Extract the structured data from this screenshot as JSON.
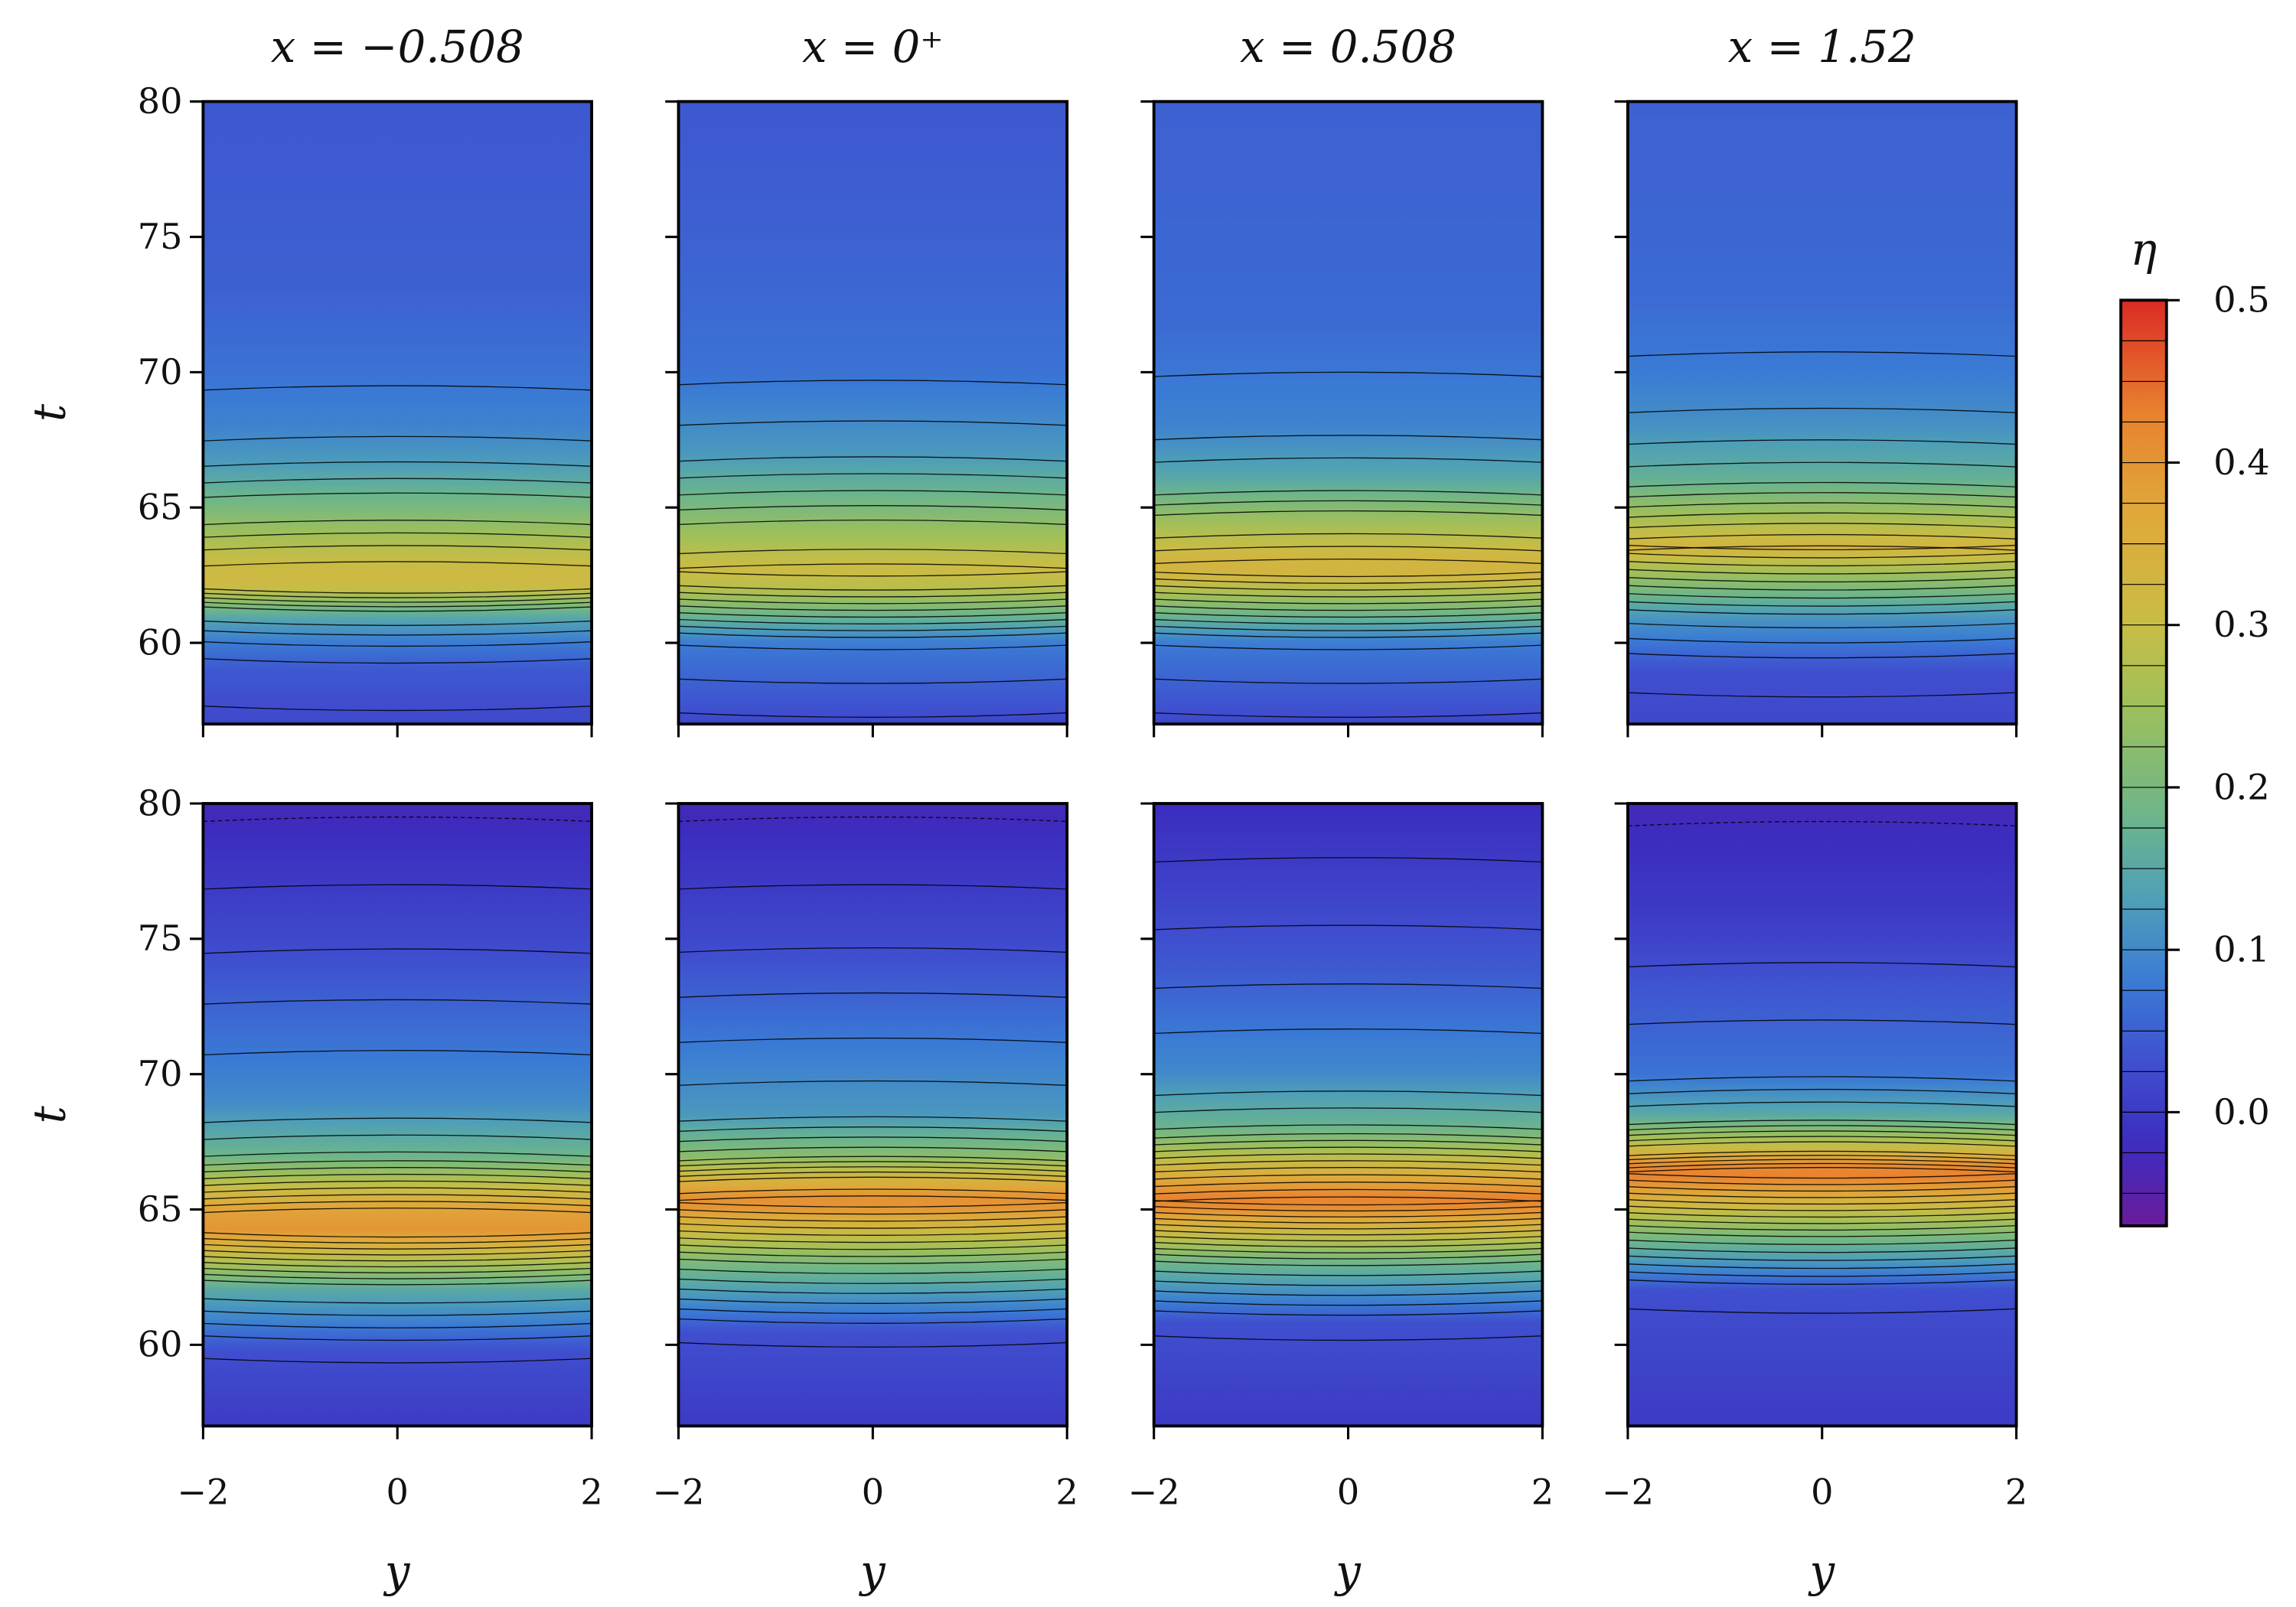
{
  "chart_data": {
    "type": "heatmap",
    "description_rows": 2,
    "columns": 4,
    "xlabel": "y",
    "ylabel": "t",
    "xlim": [
      -2,
      2
    ],
    "ylim": [
      57,
      80
    ],
    "xticks": [
      "−2",
      "0",
      "2"
    ],
    "xtick_values": [
      -2,
      0,
      2
    ],
    "yticks": [
      "60",
      "65",
      "70",
      "75",
      "80"
    ],
    "ytick_values": [
      60,
      65,
      70,
      75,
      80
    ],
    "titles": [
      "x = −0.508",
      "x = 0⁺",
      "x = 0.508",
      "x = 1.52"
    ],
    "colorbar": {
      "label": "η",
      "range": [
        -0.07,
        0.5
      ],
      "ticks": [
        "0.0",
        "0.1",
        "0.2",
        "0.3",
        "0.4",
        "0.5"
      ],
      "tick_values": [
        0,
        0.1,
        0.2,
        0.3,
        0.4,
        0.5
      ],
      "level_step": 0.025
    },
    "colormap": [
      [
        -0.07,
        "#6a1b9a"
      ],
      [
        -0.02,
        "#3c2cbf"
      ],
      [
        0.03,
        "#3f4fcf"
      ],
      [
        0.08,
        "#3a7bd5"
      ],
      [
        0.13,
        "#4e9fb8"
      ],
      [
        0.18,
        "#6bb58c"
      ],
      [
        0.25,
        "#9ec05a"
      ],
      [
        0.3,
        "#c8bd45"
      ],
      [
        0.37,
        "#e0a83a"
      ],
      [
        0.43,
        "#e8822f"
      ],
      [
        0.5,
        "#dc2a25"
      ]
    ],
    "panels": [
      {
        "row": 0,
        "col": 0,
        "profile": [
          [
            57,
            0.02
          ],
          [
            59,
            0.04
          ],
          [
            60,
            0.08
          ],
          [
            61,
            0.15
          ],
          [
            62,
            0.3
          ],
          [
            62.5,
            0.32
          ],
          [
            63.5,
            0.28
          ],
          [
            65,
            0.2
          ],
          [
            66.5,
            0.13
          ],
          [
            68,
            0.09
          ],
          [
            70,
            0.07
          ],
          [
            73,
            0.05
          ],
          [
            80,
            0.04
          ]
        ]
      },
      {
        "row": 0,
        "col": 1,
        "profile": [
          [
            57,
            0.02
          ],
          [
            60,
            0.08
          ],
          [
            62,
            0.28
          ],
          [
            62.7,
            0.31
          ],
          [
            64,
            0.25
          ],
          [
            65.5,
            0.18
          ],
          [
            67,
            0.12
          ],
          [
            70,
            0.07
          ],
          [
            75,
            0.05
          ],
          [
            80,
            0.04
          ]
        ]
      },
      {
        "row": 0,
        "col": 2,
        "profile": [
          [
            57,
            0.02
          ],
          [
            60,
            0.08
          ],
          [
            62.5,
            0.33
          ],
          [
            63,
            0.33
          ],
          [
            64.5,
            0.25
          ],
          [
            66,
            0.15
          ],
          [
            68,
            0.09
          ],
          [
            72,
            0.06
          ],
          [
            80,
            0.05
          ]
        ]
      },
      {
        "row": 0,
        "col": 3,
        "profile": [
          [
            57,
            0.02
          ],
          [
            59,
            0.03
          ],
          [
            61,
            0.12
          ],
          [
            63.5,
            0.33
          ],
          [
            64.5,
            0.27
          ],
          [
            66,
            0.17
          ],
          [
            68,
            0.11
          ],
          [
            70,
            0.08
          ],
          [
            73,
            0.06
          ],
          [
            80,
            0.05
          ]
        ]
      },
      {
        "row": 1,
        "col": 0,
        "profile": [
          [
            57,
            0.0
          ],
          [
            59.8,
            0.03
          ],
          [
            62,
            0.15
          ],
          [
            64.2,
            0.4
          ],
          [
            65,
            0.38
          ],
          [
            66,
            0.28
          ],
          [
            67,
            0.18
          ],
          [
            69,
            0.1
          ],
          [
            72,
            0.06
          ],
          [
            75,
            0.02
          ],
          [
            80,
            -0.03
          ]
        ]
      },
      {
        "row": 1,
        "col": 1,
        "profile": [
          [
            57,
            0.0
          ],
          [
            60.5,
            0.03
          ],
          [
            63,
            0.2
          ],
          [
            65.3,
            0.42
          ],
          [
            66,
            0.35
          ],
          [
            67,
            0.22
          ],
          [
            68.5,
            0.12
          ],
          [
            71,
            0.08
          ],
          [
            75,
            0.02
          ],
          [
            80,
            -0.03
          ]
        ]
      },
      {
        "row": 1,
        "col": 2,
        "profile": [
          [
            57,
            0.0
          ],
          [
            60.8,
            0.03
          ],
          [
            63,
            0.18
          ],
          [
            65.3,
            0.44
          ],
          [
            66.5,
            0.33
          ],
          [
            68,
            0.18
          ],
          [
            70,
            0.1
          ],
          [
            74,
            0.04
          ],
          [
            80,
            -0.02
          ]
        ]
      },
      {
        "row": 1,
        "col": 3,
        "profile": [
          [
            57,
            0.0
          ],
          [
            62,
            0.03
          ],
          [
            64,
            0.2
          ],
          [
            66.4,
            0.45
          ],
          [
            67.3,
            0.3
          ],
          [
            68.5,
            0.15
          ],
          [
            70,
            0.07
          ],
          [
            73,
            0.04
          ],
          [
            76,
            0.0
          ],
          [
            80,
            -0.03
          ]
        ]
      }
    ]
  }
}
